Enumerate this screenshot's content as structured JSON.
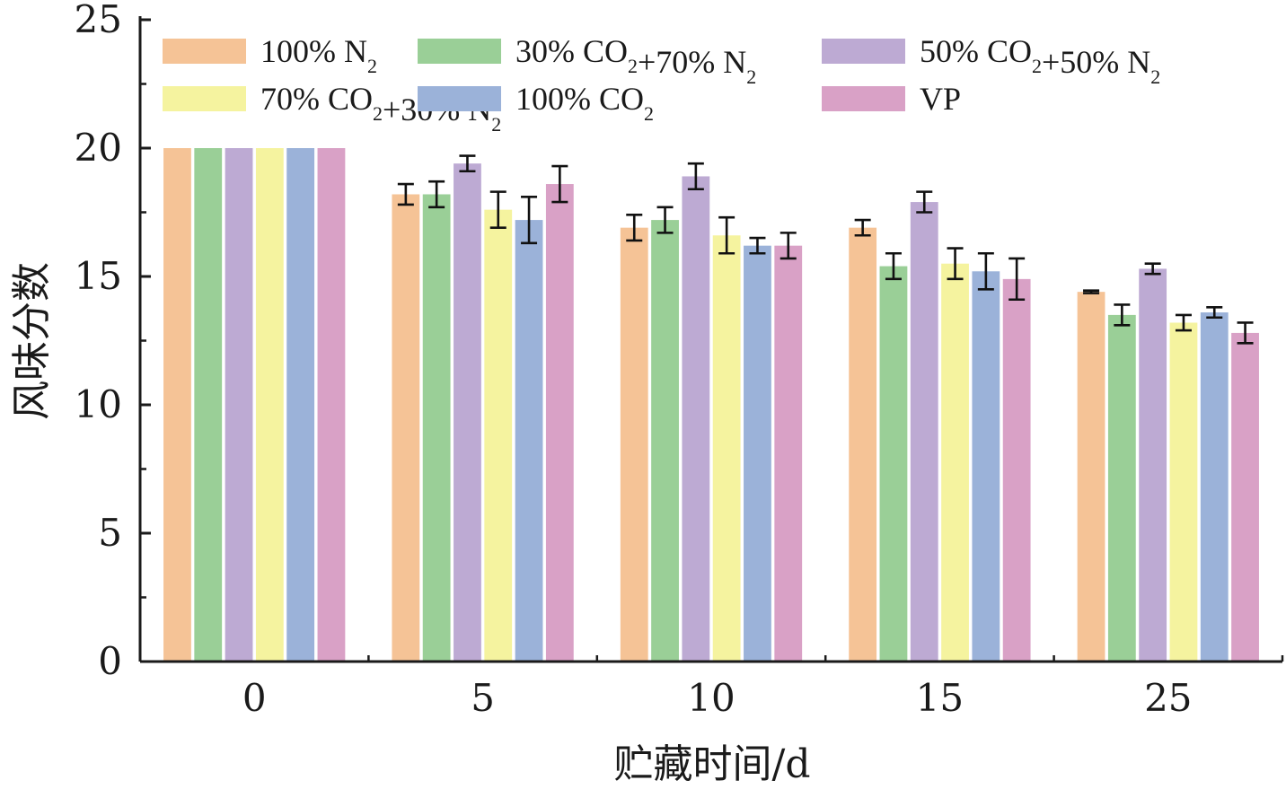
{
  "chart_data": {
    "type": "bar",
    "title": "",
    "xlabel": "贮藏时间/d",
    "ylabel": "风味分数",
    "ylim": [
      0,
      25
    ],
    "yticks": [
      0,
      5,
      10,
      15,
      20,
      25
    ],
    "categories": [
      "0",
      "5",
      "10",
      "15",
      "25"
    ],
    "grid": false,
    "legend_position": "top",
    "series": [
      {
        "name": "100% N2",
        "label_parts": [
          [
            "100% N",
            false
          ],
          [
            "2",
            true
          ]
        ],
        "color": "#F5C396",
        "values": [
          20.0,
          18.2,
          16.9,
          16.9,
          14.4
        ],
        "errors": [
          0,
          0.4,
          0.5,
          0.3,
          0.05
        ]
      },
      {
        "name": "30% CO2+70% N2",
        "label_parts": [
          [
            "30% CO",
            false
          ],
          [
            "2",
            true
          ],
          [
            "+70% N",
            false
          ],
          [
            "2",
            true
          ]
        ],
        "color": "#9ACF97",
        "values": [
          20.0,
          18.2,
          17.2,
          15.4,
          13.5
        ],
        "errors": [
          0,
          0.5,
          0.5,
          0.5,
          0.4
        ]
      },
      {
        "name": "50% CO2+50% N2",
        "label_parts": [
          [
            "50% CO",
            false
          ],
          [
            "2",
            true
          ],
          [
            "+50% N",
            false
          ],
          [
            "2",
            true
          ]
        ],
        "color": "#BDAAD3",
        "values": [
          20.0,
          19.4,
          18.9,
          17.9,
          15.3
        ],
        "errors": [
          0,
          0.3,
          0.5,
          0.4,
          0.2
        ]
      },
      {
        "name": "70% CO2+30% N2",
        "label_parts": [
          [
            "70% CO",
            false
          ],
          [
            "2",
            true
          ],
          [
            "+30% N",
            false
          ],
          [
            "2",
            true
          ]
        ],
        "color": "#F5F39F",
        "values": [
          20.0,
          17.6,
          16.6,
          15.5,
          13.2
        ],
        "errors": [
          0,
          0.7,
          0.7,
          0.6,
          0.3
        ]
      },
      {
        "name": "100% CO2",
        "label_parts": [
          [
            "100% CO",
            false
          ],
          [
            "2",
            true
          ]
        ],
        "color": "#9BB2D9",
        "values": [
          20.0,
          17.2,
          16.2,
          15.2,
          13.6
        ],
        "errors": [
          0,
          0.9,
          0.3,
          0.7,
          0.2
        ]
      },
      {
        "name": "VP",
        "label_parts": [
          [
            "VP",
            false
          ]
        ],
        "color": "#D9A1C6",
        "values": [
          20.0,
          18.6,
          16.2,
          14.9,
          12.8
        ],
        "errors": [
          0,
          0.7,
          0.5,
          0.8,
          0.4
        ]
      }
    ]
  }
}
